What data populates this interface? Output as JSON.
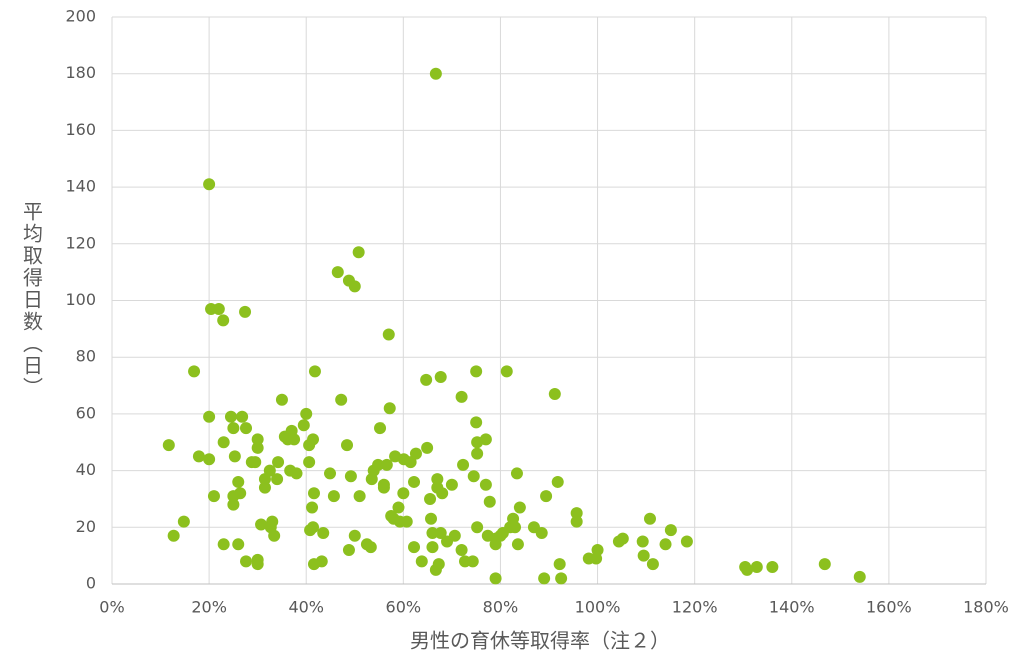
{
  "chart_data": {
    "type": "scatter",
    "x_label": "男性の育休等取得率（注２）",
    "y_label": "平均取得日数（日）",
    "color": "#8cc01e",
    "grid": true,
    "xlim": [
      0,
      180
    ],
    "xticks": [
      {
        "value": 0,
        "label": "0%"
      },
      {
        "value": 20,
        "label": "20%"
      },
      {
        "value": 40,
        "label": "40%"
      },
      {
        "value": 60,
        "label": "60%"
      },
      {
        "value": 80,
        "label": "80%"
      },
      {
        "value": 100,
        "label": "100%"
      },
      {
        "value": 120,
        "label": "120%"
      },
      {
        "value": 140,
        "label": "140%"
      },
      {
        "value": 160,
        "label": "160%"
      },
      {
        "value": 180,
        "label": "180%"
      }
    ],
    "ylim": [
      0,
      200
    ],
    "yticks": [
      0,
      20,
      40,
      60,
      80,
      100,
      120,
      140,
      160,
      180,
      200
    ],
    "x": [
      11.7,
      12.7,
      14.8,
      16.9,
      17.9,
      20,
      20.4,
      22,
      20,
      20,
      21,
      22.9,
      23,
      23,
      24.5,
      25,
      25.3,
      25,
      25,
      26,
      26.4,
      26,
      26.8,
      27.4,
      27.6,
      27.6,
      28.8,
      29.5,
      30,
      30,
      30,
      30,
      30.7,
      31.5,
      31.5,
      32.5,
      33,
      32.7,
      33.4,
      34,
      34.2,
      35,
      35.6,
      36.2,
      37,
      37.5,
      36.7,
      38,
      39.5,
      40,
      40.6,
      40.6,
      40.8,
      41.2,
      41.4,
      41.4,
      41.8,
      41.6,
      41.6,
      43.2,
      43.5,
      44.9,
      45.7,
      46.5,
      47.2,
      48.4,
      48.8,
      48.8,
      49.2,
      50,
      50,
      50.8,
      51,
      52.5,
      53.3,
      53.5,
      53.9,
      54.8,
      55.2,
      56,
      56.6,
      56,
      57,
      57.2,
      57.5,
      58,
      58.3,
      59,
      59.3,
      60,
      60.1,
      60.7,
      61.5,
      62.2,
      62.2,
      62.6,
      63.8,
      64.7,
      64.9,
      65.5,
      65.7,
      66,
      66,
      66.7,
      66.7,
      67.3,
      67,
      67,
      67.7,
      68,
      67.7,
      69,
      70,
      70.6,
      72,
      72.3,
      72,
      72.7,
      74.3,
      74.5,
      75,
      75,
      75.2,
      75.2,
      75.2,
      77,
      77,
      77.4,
      77.8,
      79,
      79,
      79,
      80,
      80.5,
      81.3,
      82,
      82.6,
      83.4,
      83.6,
      84,
      83,
      86.9,
      88.5,
      89,
      89.4,
      91.2,
      91.8,
      92.2,
      92.5,
      95.7,
      95.7,
      98.2,
      99.7,
      100,
      104.4,
      105.2,
      109.3,
      109.5,
      110.8,
      111.4,
      114,
      115.1,
      118.4,
      130.4,
      130.8,
      132.8,
      136,
      146.8,
      154
    ],
    "values": [
      49,
      17,
      22,
      75,
      45,
      141,
      97,
      97,
      59,
      44,
      31,
      93,
      50,
      14,
      59,
      55,
      45,
      31,
      28,
      36,
      32,
      14,
      59,
      96,
      55,
      8,
      43,
      43,
      48,
      51,
      8.5,
      7,
      21,
      34,
      37,
      40,
      22,
      20,
      17,
      37,
      43,
      65,
      52,
      51,
      54,
      51,
      40,
      39,
      56,
      60,
      49,
      43,
      19,
      27,
      20,
      51,
      75,
      32,
      7,
      8,
      18,
      39,
      31,
      110,
      65,
      49,
      107,
      12,
      38,
      105,
      17,
      117,
      31,
      14,
      13,
      37,
      40,
      42,
      55,
      35,
      42,
      34,
      88,
      62,
      24,
      23,
      45,
      27,
      22,
      32,
      44,
      22,
      43,
      13,
      36,
      46,
      8,
      72,
      48,
      30,
      23,
      18,
      13,
      180,
      5,
      7,
      37,
      34,
      73,
      32,
      18,
      15,
      35,
      17,
      66,
      42,
      12,
      8,
      8,
      38,
      75,
      57,
      50,
      46,
      20,
      51,
      35,
      17,
      29,
      2,
      14,
      16,
      17,
      18,
      75,
      20,
      23,
      39,
      14,
      27,
      20,
      20,
      18,
      2,
      31,
      67,
      36,
      7,
      2,
      25,
      22,
      9,
      9,
      12,
      15,
      16,
      15,
      10,
      23,
      7,
      14,
      19,
      15,
      6,
      5,
      6,
      6,
      7,
      2.5
    ]
  }
}
